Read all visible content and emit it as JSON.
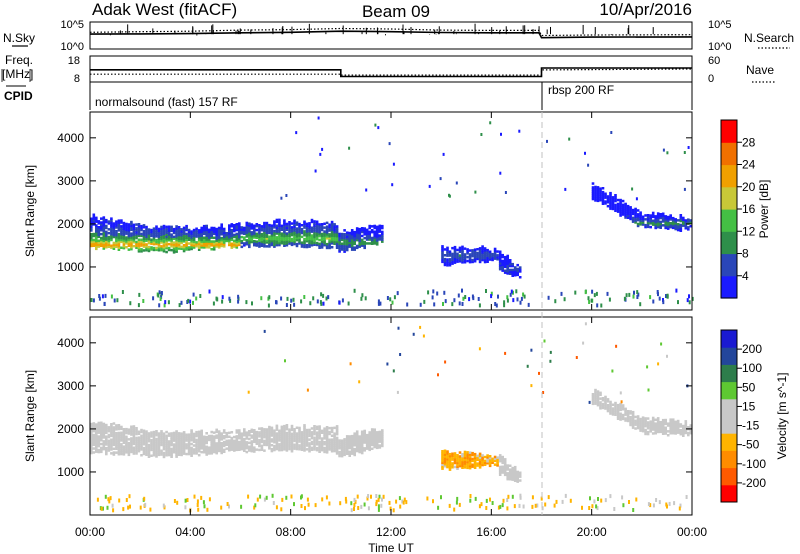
{
  "header": {
    "station": "Adak West (fitACF)",
    "beam": "Beam 09",
    "date": "10/Apr/2016"
  },
  "colors": {
    "power": [
      "#1a1aff",
      "#2a46b8",
      "#2e8f4a",
      "#44c044",
      "#c8c838",
      "#f0a000",
      "#f07000",
      "#ff0000"
    ],
    "velocity": [
      "#ff0000",
      "#ff5a00",
      "#ff8c00",
      "#ffb400",
      "#c8c8c8",
      "#c8c8c8",
      "#5ec832",
      "#2d7d4b",
      "#23469b",
      "#1a1ad2"
    ],
    "ground_scatter": "#c8c8c8",
    "dashed_line": "#c0c0c0"
  },
  "chart_data": [
    {
      "type": "line",
      "panel": "noise",
      "left_label": "N.Sky",
      "right_label": "N.Search",
      "left_ticks": [
        "10^5",
        "10^0"
      ],
      "right_ticks": [
        "10^5",
        "10^0"
      ],
      "series": [
        {
          "name": "N.Sky",
          "style": "solid",
          "x": [
            0,
            2,
            4,
            6,
            8,
            10,
            12,
            14,
            16,
            17.9,
            18,
            20,
            24
          ],
          "y": [
            0.55,
            0.56,
            0.57,
            0.6,
            0.62,
            0.66,
            0.64,
            0.61,
            0.6,
            0.6,
            0.42,
            0.44,
            0.45
          ]
        },
        {
          "name": "N.Search",
          "style": "dotted",
          "x": [
            0,
            2,
            4,
            6,
            8,
            10,
            12,
            14,
            16,
            17.9,
            18,
            20,
            24
          ],
          "y": [
            0.62,
            0.64,
            0.66,
            0.7,
            0.72,
            0.76,
            0.74,
            0.7,
            0.69,
            0.69,
            0.5,
            0.52,
            0.53
          ]
        }
      ]
    },
    {
      "type": "line",
      "panel": "frequency",
      "left_label": "Freq.",
      "left_unit": "[MHz]",
      "right_label": "Nave",
      "left_ticks": [
        "18",
        "8"
      ],
      "right_ticks": [
        "60",
        "0"
      ],
      "series": [
        {
          "name": "Freq.",
          "style": "solid",
          "unit": "MHz",
          "x": [
            0,
            10,
            10,
            18,
            18,
            24
          ],
          "y": [
            12.7,
            12.7,
            10.1,
            10.1,
            13.4,
            13.4
          ]
        },
        {
          "name": "Nave",
          "style": "dotted",
          "x": [
            0,
            10,
            10,
            18,
            18,
            24
          ],
          "y": [
            18,
            18,
            16,
            16,
            28,
            30
          ]
        }
      ]
    },
    {
      "type": "table",
      "panel": "cpid",
      "label": "CPID",
      "segments": [
        {
          "name": "normalsound (fast) 157 RF",
          "start": 0,
          "end": 18
        },
        {
          "name": "rbsp 200 RF",
          "start": 18,
          "end": 24
        }
      ]
    },
    {
      "type": "heatmap",
      "panel": "power",
      "ylabel": "Slant Range [km]",
      "colorbar_label": "Power [dB]",
      "colorbar_ticks": [
        "4",
        "8",
        "12",
        "16",
        "20",
        "24",
        "28"
      ],
      "y_ticks": [
        "1000",
        "2000",
        "3000",
        "4000"
      ],
      "ylim": [
        0,
        4600
      ],
      "xlim": [
        0,
        24
      ],
      "segments": [
        {
          "t0": 0.0,
          "t1": 6.0,
          "r_low": [
            1450,
            1350,
            1480
          ],
          "r_high": [
            2150,
            1900,
            1950
          ],
          "peak": 1500,
          "power": 22
        },
        {
          "t0": 6.0,
          "t1": 9.9,
          "r_low": [
            1480,
            1500,
            1450
          ],
          "r_high": [
            1950,
            2050,
            2000
          ],
          "peak": 1650,
          "power": 14
        },
        {
          "t0": 9.9,
          "t1": 11.7,
          "r_low": [
            1350,
            1450,
            1600
          ],
          "r_high": [
            1800,
            1900,
            2000
          ],
          "peak": 1550,
          "power": 10
        },
        {
          "t0": 14.0,
          "t1": 16.3,
          "r_low": [
            1050,
            1100,
            1150
          ],
          "r_high": [
            1450,
            1450,
            1350
          ],
          "peak": 1250,
          "power": 6
        },
        {
          "t0": 16.3,
          "t1": 17.2,
          "r_low": [
            950,
            800,
            750
          ],
          "r_high": [
            1350,
            1150,
            1000
          ],
          "peak": 950,
          "power": 5
        },
        {
          "t0": 20.0,
          "t1": 24.0,
          "r_low": [
            2600,
            1900,
            1850
          ],
          "r_high": [
            2900,
            2250,
            2100
          ],
          "peak": 2000,
          "power": 9
        }
      ],
      "ground_band": {
        "r_low": 150,
        "r_high": 500,
        "power": 8
      }
    },
    {
      "type": "heatmap",
      "panel": "velocity",
      "ylabel": "Slant Range [km]",
      "colorbar_label": "Velocity [m s^-1]",
      "colorbar_ticks": [
        "-200",
        "-100",
        "-50",
        "-15",
        "15",
        "50",
        "100",
        "200"
      ],
      "y_ticks": [
        "1000",
        "2000",
        "3000",
        "4000"
      ],
      "ylim": [
        0,
        4600
      ],
      "xlim": [
        0,
        24
      ],
      "xlabel": "Time UT",
      "x_ticks": [
        "00:00",
        "04:00",
        "08:00",
        "12:00",
        "16:00",
        "20:00",
        "00:00"
      ],
      "segments": [
        {
          "t0": 0.0,
          "t1": 6.0,
          "r_low": [
            1450,
            1350,
            1480
          ],
          "r_high": [
            2150,
            1900,
            1950
          ],
          "velocity": 0
        },
        {
          "t0": 6.0,
          "t1": 9.9,
          "r_low": [
            1480,
            1500,
            1450
          ],
          "r_high": [
            1950,
            2050,
            2000
          ],
          "velocity": 0
        },
        {
          "t0": 9.9,
          "t1": 11.7,
          "r_low": [
            1350,
            1450,
            1600
          ],
          "r_high": [
            1800,
            1900,
            2000
          ],
          "velocity": 0
        },
        {
          "t0": 14.0,
          "t1": 16.3,
          "r_low": [
            1050,
            1100,
            1150
          ],
          "r_high": [
            1450,
            1450,
            1350
          ],
          "velocity": -40
        },
        {
          "t0": 16.3,
          "t1": 17.2,
          "r_low": [
            950,
            800,
            750
          ],
          "r_high": [
            1350,
            1150,
            1000
          ],
          "velocity": 0
        },
        {
          "t0": 20.0,
          "t1": 24.0,
          "r_low": [
            2600,
            1900,
            1850
          ],
          "r_high": [
            2900,
            2250,
            2100
          ],
          "velocity": 0
        }
      ],
      "ground_band": {
        "r_low": 150,
        "r_high": 500,
        "velocity": -40
      }
    }
  ]
}
